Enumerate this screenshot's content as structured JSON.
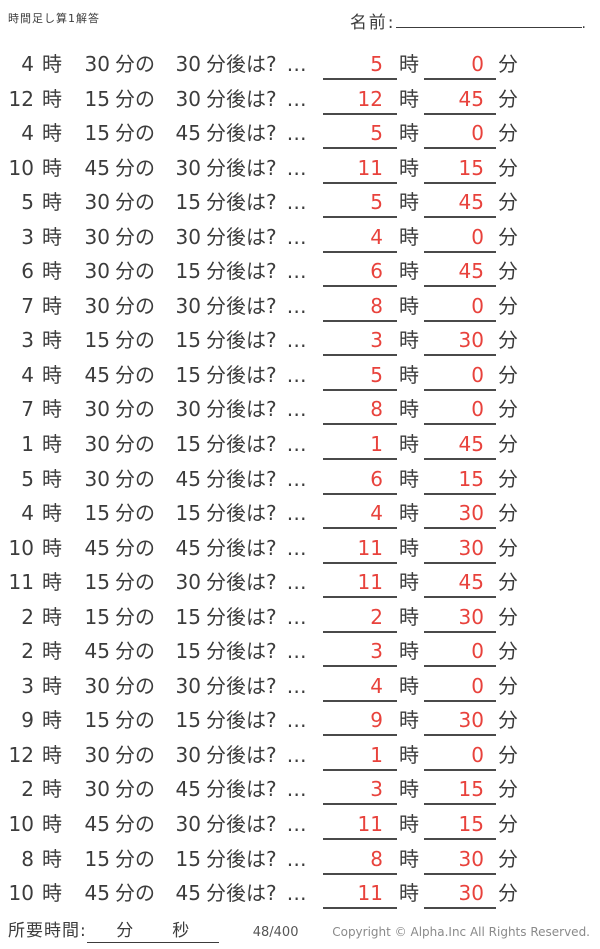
{
  "header": {
    "title": "時間足し算1解答",
    "name_label": "名前:",
    "name_period": "."
  },
  "labels": {
    "hour_unit": "時",
    "minute_of": "分の",
    "after_suffix": "分後は?",
    "dots": "…",
    "minute_unit": "分"
  },
  "problems": [
    {
      "hour": "4",
      "minute": "30",
      "add": "30",
      "ans_hour": "5",
      "ans_minute": "0"
    },
    {
      "hour": "12",
      "minute": "15",
      "add": "30",
      "ans_hour": "12",
      "ans_minute": "45"
    },
    {
      "hour": "4",
      "minute": "15",
      "add": "45",
      "ans_hour": "5",
      "ans_minute": "0"
    },
    {
      "hour": "10",
      "minute": "45",
      "add": "30",
      "ans_hour": "11",
      "ans_minute": "15"
    },
    {
      "hour": "5",
      "minute": "30",
      "add": "15",
      "ans_hour": "5",
      "ans_minute": "45"
    },
    {
      "hour": "3",
      "minute": "30",
      "add": "30",
      "ans_hour": "4",
      "ans_minute": "0"
    },
    {
      "hour": "6",
      "minute": "30",
      "add": "15",
      "ans_hour": "6",
      "ans_minute": "45"
    },
    {
      "hour": "7",
      "minute": "30",
      "add": "30",
      "ans_hour": "8",
      "ans_minute": "0"
    },
    {
      "hour": "3",
      "minute": "15",
      "add": "15",
      "ans_hour": "3",
      "ans_minute": "30"
    },
    {
      "hour": "4",
      "minute": "45",
      "add": "15",
      "ans_hour": "5",
      "ans_minute": "0"
    },
    {
      "hour": "7",
      "minute": "30",
      "add": "30",
      "ans_hour": "8",
      "ans_minute": "0"
    },
    {
      "hour": "1",
      "minute": "30",
      "add": "15",
      "ans_hour": "1",
      "ans_minute": "45"
    },
    {
      "hour": "5",
      "minute": "30",
      "add": "45",
      "ans_hour": "6",
      "ans_minute": "15"
    },
    {
      "hour": "4",
      "minute": "15",
      "add": "15",
      "ans_hour": "4",
      "ans_minute": "30"
    },
    {
      "hour": "10",
      "minute": "45",
      "add": "45",
      "ans_hour": "11",
      "ans_minute": "30"
    },
    {
      "hour": "11",
      "minute": "15",
      "add": "30",
      "ans_hour": "11",
      "ans_minute": "45"
    },
    {
      "hour": "2",
      "minute": "15",
      "add": "15",
      "ans_hour": "2",
      "ans_minute": "30"
    },
    {
      "hour": "2",
      "minute": "45",
      "add": "15",
      "ans_hour": "3",
      "ans_minute": "0"
    },
    {
      "hour": "3",
      "minute": "30",
      "add": "30",
      "ans_hour": "4",
      "ans_minute": "0"
    },
    {
      "hour": "9",
      "minute": "15",
      "add": "15",
      "ans_hour": "9",
      "ans_minute": "30"
    },
    {
      "hour": "12",
      "minute": "30",
      "add": "30",
      "ans_hour": "1",
      "ans_minute": "0"
    },
    {
      "hour": "2",
      "minute": "30",
      "add": "45",
      "ans_hour": "3",
      "ans_minute": "15"
    },
    {
      "hour": "10",
      "minute": "45",
      "add": "30",
      "ans_hour": "11",
      "ans_minute": "15"
    },
    {
      "hour": "8",
      "minute": "15",
      "add": "15",
      "ans_hour": "8",
      "ans_minute": "30"
    },
    {
      "hour": "10",
      "minute": "45",
      "add": "45",
      "ans_hour": "11",
      "ans_minute": "30"
    }
  ],
  "footer": {
    "time_label": "所要時間:",
    "time_min_label": "分",
    "time_sec_label": "秒",
    "page": "48/400",
    "copyright": "Copyright ©  Alpha.Inc All Rights Reserved."
  },
  "colors": {
    "answer_red": "#e8423c",
    "text": "#3c3c3c",
    "underline": "#4a4a4a"
  }
}
